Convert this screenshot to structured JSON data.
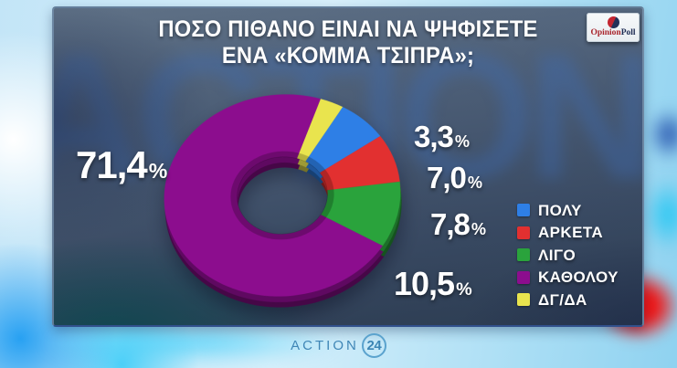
{
  "header": {
    "title_line1": "ΠΟΣΟ ΠΙΘΑΝΟ ΕΙΝΑΙ ΝΑ ΨΗΦΙΣΕΤΕ",
    "title_line2": "ΕΝΑ «ΚΟΜΜΑ ΤΣΙΠΡΑ»;"
  },
  "branding": {
    "pollster_name_part1": "Opinion",
    "pollster_name_part2": "Poll",
    "watermark": "ACTION"
  },
  "footer": {
    "channel_name": "ACTION",
    "channel_number": "24"
  },
  "chart_data": {
    "type": "pie",
    "style": "3d-donut",
    "title": "ΠΟΣΟ ΠΙΘΑΝΟ ΕΙΝΑΙ ΝΑ ΨΗΦΙΣΕΤΕ ΕΝΑ «ΚΟΜΜΑ ΤΣΙΠΡΑ»;",
    "unit": "%",
    "decimal_separator": ",",
    "legend_position": "right",
    "segments": [
      {
        "label": "ΠΟΛΥ",
        "value": 7.0,
        "display": "7,0",
        "color": "#2e7fe6"
      },
      {
        "label": "ΑΡΚΕΤΑ",
        "value": 7.8,
        "display": "7,8",
        "color": "#e23030"
      },
      {
        "label": "ΛΙΓΟ",
        "value": 10.5,
        "display": "10,5",
        "color": "#2aa33c"
      },
      {
        "label": "ΚΑΘΟΛΟΥ",
        "value": 71.4,
        "display": "71,4",
        "color": "#8c0d8e"
      },
      {
        "label": "ΔΓ/ΔΑ",
        "value": 3.3,
        "display": "3,3",
        "color": "#e9e44e"
      }
    ],
    "draw_order_clockwise_from_top": [
      "ΔΓ/ΔΑ",
      "ΠΟΛΥ",
      "ΑΡΚΕΤΑ",
      "ΛΙΓΟ",
      "ΚΑΘΟΛΟΥ"
    ],
    "start_angle_deg": 24
  }
}
